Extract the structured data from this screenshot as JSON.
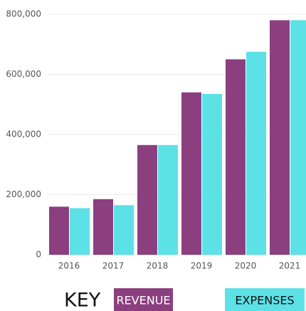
{
  "chart_data": {
    "type": "bar",
    "categories": [
      "2016",
      "2017",
      "2018",
      "2019",
      "2020",
      "2021"
    ],
    "series": [
      {
        "name": "REVENUE",
        "color": "#8c3f7f",
        "values": [
          160000,
          185000,
          365000,
          540000,
          650000,
          780000
        ]
      },
      {
        "name": "EXPENSES",
        "color": "#5ce1e6",
        "values": [
          155000,
          165000,
          365000,
          535000,
          675000,
          780000
        ]
      }
    ],
    "ylim": [
      0,
      800000
    ],
    "yticks": [
      {
        "value": 0,
        "label": "0"
      },
      {
        "value": 200000,
        "label": "200,000"
      },
      {
        "value": 400000,
        "label": "400,000"
      },
      {
        "value": 600000,
        "label": "600,000"
      },
      {
        "value": 800000,
        "label": "800,000"
      }
    ],
    "grid": true,
    "legend_title": "KEY",
    "legend": "bottom"
  }
}
